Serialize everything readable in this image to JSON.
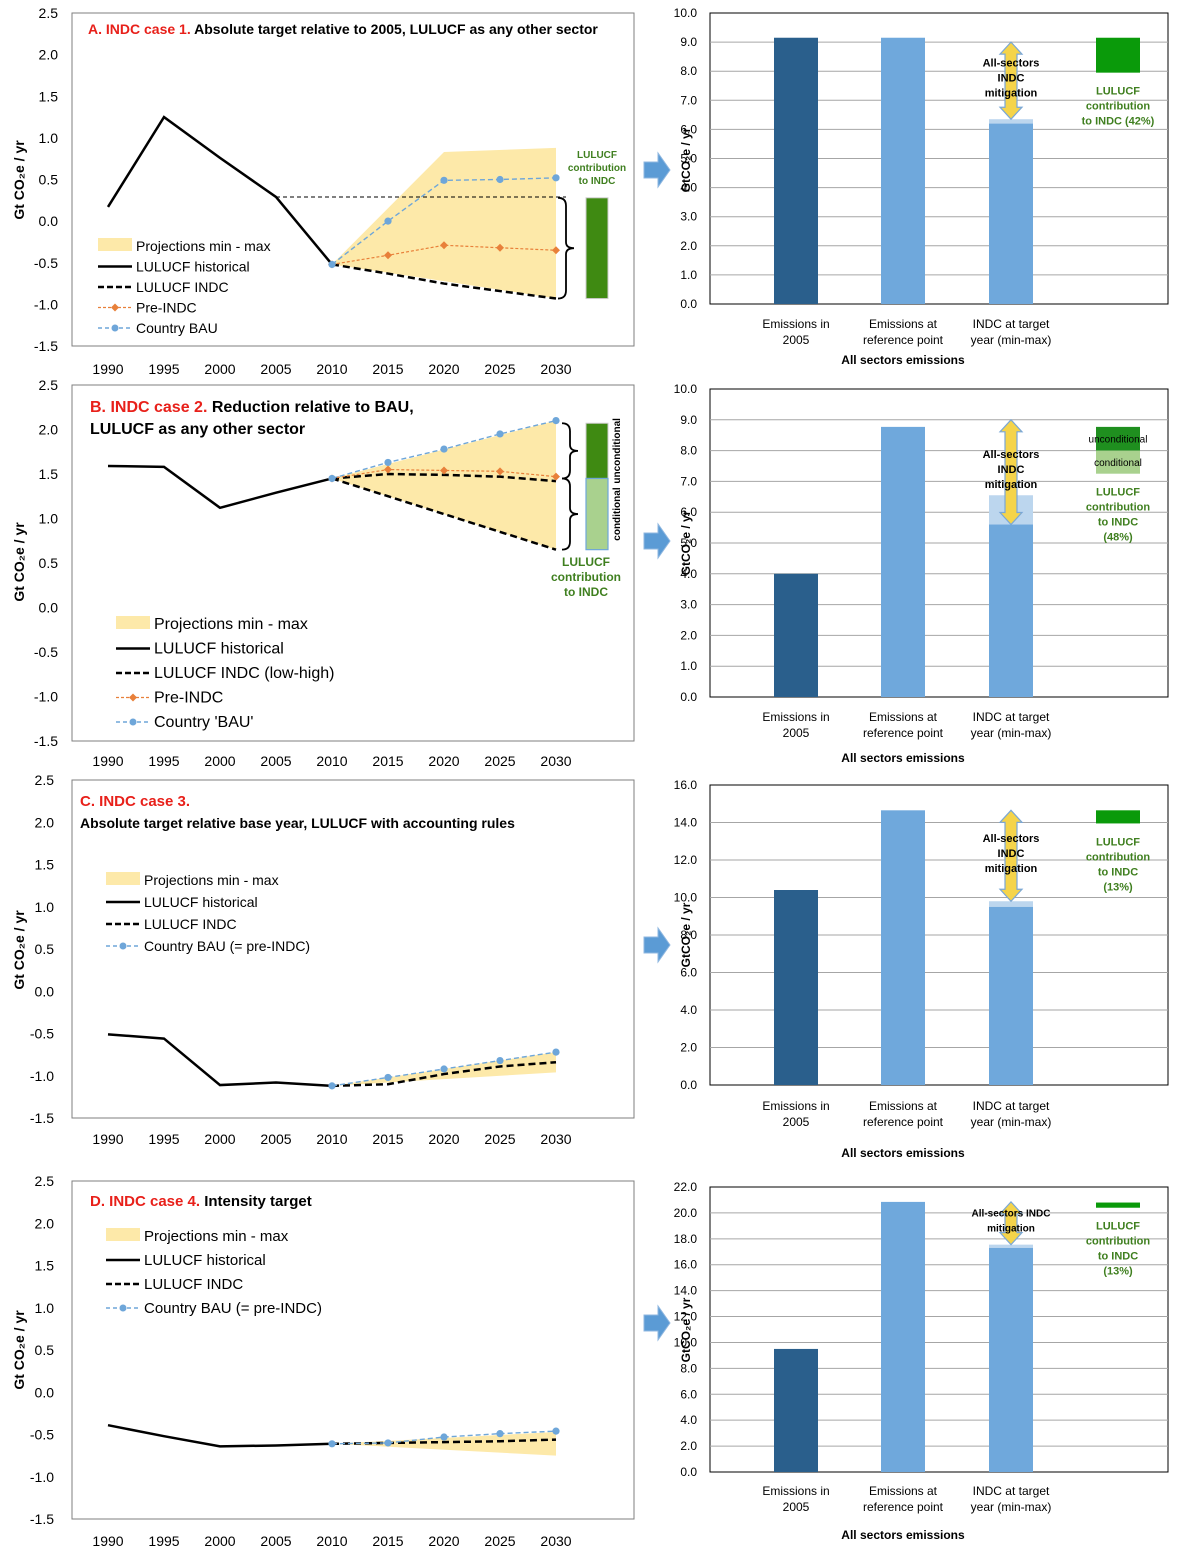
{
  "colors": {
    "band": "#fde9a9",
    "historical": "#000000",
    "indc": "#000000",
    "pre_indc": "#e8803a",
    "bau": "#6ea6d9",
    "bar_2005": "#2a5f8c",
    "bar_light": "#6fa8dc",
    "bar_faint": "#bcd6ee",
    "lulucf_green": "#0a9a0a",
    "lulucf_dark": "#3f8a12",
    "lulucf_light": "#a9d18e",
    "title_red": "#e8201a",
    "label_green": "#3f7f1f",
    "arrow_fill": "#f5d44a",
    "arrow_stroke": "#7aa7d6",
    "flow_arrow": "#5b9bd5"
  },
  "chart_data": [
    {
      "id": "A",
      "type": "line",
      "title_prefix": "A. INDC case 1.",
      "title_lines": [
        "Absolute target relative to 2005, LULUCF as any other sector"
      ],
      "ylabel": "Gt CO₂e / yr",
      "ylim": [
        -1.5,
        2.5
      ],
      "yticks": [
        "2.5",
        "2.0",
        "1.5",
        "1.0",
        "0.5",
        "0.0",
        "-0.5",
        "-1.0",
        "-1.5"
      ],
      "xticks": [
        "1990",
        "1995",
        "2000",
        "2005",
        "2010",
        "2015",
        "2020",
        "2025",
        "2030"
      ],
      "legend": [
        "Projections min - max",
        "LULUCF historical",
        "LULUCF INDC",
        "Pre-INDC",
        "Country BAU"
      ],
      "band": {
        "x": [
          2010,
          2020,
          2030
        ],
        "upper": [
          -0.52,
          0.83,
          0.88
        ],
        "lower": [
          -0.52,
          -0.72,
          -0.93
        ]
      },
      "series": [
        {
          "name": "LULUCF historical",
          "style": "historical",
          "x": [
            1990,
            1995,
            2000,
            2005,
            2010
          ],
          "y": [
            0.17,
            1.25,
            0.76,
            0.29,
            -0.52
          ]
        },
        {
          "name": "LULUCF INDC",
          "style": "indc",
          "x": [
            2010,
            2015,
            2020,
            2025,
            2030
          ],
          "y": [
            -0.52,
            -0.63,
            -0.75,
            -0.84,
            -0.93
          ]
        },
        {
          "name": "Pre-INDC",
          "style": "pre_indc",
          "x": [
            2010,
            2015,
            2020,
            2025,
            2030
          ],
          "y": [
            -0.52,
            -0.41,
            -0.29,
            -0.32,
            -0.35
          ]
        },
        {
          "name": "Country BAU",
          "style": "bau",
          "x": [
            2010,
            2015,
            2020,
            2025,
            2030
          ],
          "y": [
            -0.52,
            0.0,
            0.49,
            0.5,
            0.52
          ]
        }
      ],
      "reference_line": {
        "x": [
          2005,
          2030
        ],
        "y": 0.29
      },
      "lulucf_note": [
        "LULUCF",
        "contribution",
        "to INDC"
      ],
      "side_bar": {
        "dark": [
          0.28,
          -0.93
        ]
      }
    },
    {
      "id": "B",
      "type": "line",
      "title_prefix": "B. INDC case 2.",
      "title_lines": [
        "Reduction relative to BAU,",
        "LULUCF as any other sector"
      ],
      "ylabel": "Gt CO₂e / yr",
      "ylim": [
        -1.5,
        2.5
      ],
      "yticks": [
        "2.5",
        "2.0",
        "1.5",
        "1.0",
        "0.5",
        "0.0",
        "-0.5",
        "-1.0",
        "-1.5"
      ],
      "xticks": [
        "1990",
        "1995",
        "2000",
        "2005",
        "2010",
        "2015",
        "2020",
        "2025",
        "2030"
      ],
      "legend": [
        "Projections min - max",
        "LULUCF historical",
        "LULUCF INDC (low-high)",
        "Pre-INDC",
        "Country 'BAU'"
      ],
      "band": {
        "x": [
          2010,
          2030
        ],
        "upper": [
          1.45,
          2.1
        ],
        "lower": [
          1.45,
          0.65
        ]
      },
      "series": [
        {
          "name": "LULUCF historical",
          "style": "historical",
          "x": [
            1990,
            1995,
            2000,
            2005,
            2010
          ],
          "y": [
            1.59,
            1.58,
            1.12,
            1.29,
            1.45
          ]
        },
        {
          "name": "LULUCF INDC (low-high)",
          "style": "indc",
          "x": [
            2010,
            2015,
            2020,
            2025,
            2030
          ],
          "y": [
            1.45,
            1.5,
            1.49,
            1.47,
            1.42
          ]
        },
        {
          "name": "",
          "style": "indc",
          "x": [
            2010,
            2030
          ],
          "y": [
            1.45,
            0.65
          ]
        },
        {
          "name": "Pre-INDC",
          "style": "pre_indc",
          "x": [
            2010,
            2015,
            2020,
            2025,
            2030
          ],
          "y": [
            1.45,
            1.55,
            1.54,
            1.53,
            1.47
          ]
        },
        {
          "name": "Country 'BAU'",
          "style": "bau",
          "x": [
            2010,
            2015,
            2020,
            2025,
            2030
          ],
          "y": [
            1.45,
            1.63,
            1.78,
            1.95,
            2.1
          ]
        }
      ],
      "lulucf_note": [
        "LULUCF",
        "contribution",
        "to INDC"
      ],
      "side_labels": [
        "unconditional",
        "conditional"
      ],
      "side_bar": {
        "dark": [
          2.07,
          1.45
        ],
        "light": [
          1.45,
          0.65
        ]
      }
    },
    {
      "id": "C",
      "type": "line",
      "title_prefix": "C. INDC case 3.",
      "title_lines": [
        "Absolute target relative base year, LULUCF with accounting rules"
      ],
      "title_newline": true,
      "ylabel": "Gt CO₂e / yr",
      "ylim": [
        -1.5,
        2.5
      ],
      "yticks": [
        "2.5",
        "2.0",
        "1.5",
        "1.0",
        "0.5",
        "0.0",
        "-0.5",
        "-1.0",
        "-1.5"
      ],
      "xticks": [
        "1990",
        "1995",
        "2000",
        "2005",
        "2010",
        "2015",
        "2020",
        "2025",
        "2030"
      ],
      "legend": [
        "Projections min - max",
        "LULUCF historical",
        "LULUCF INDC",
        "Country BAU (= pre-INDC)"
      ],
      "band": {
        "x": [
          2010,
          2030
        ],
        "upper": [
          -1.12,
          -0.72
        ],
        "lower": [
          -1.12,
          -0.96
        ]
      },
      "series": [
        {
          "name": "LULUCF historical",
          "style": "historical",
          "x": [
            1990,
            1995,
            2000,
            2005,
            2010
          ],
          "y": [
            -0.51,
            -0.56,
            -1.11,
            -1.08,
            -1.12
          ]
        },
        {
          "name": "LULUCF INDC",
          "style": "indc",
          "x": [
            2010,
            2015,
            2020,
            2025,
            2030
          ],
          "y": [
            -1.12,
            -1.1,
            -0.98,
            -0.89,
            -0.84
          ]
        },
        {
          "name": "Country BAU (= pre-INDC)",
          "style": "bau",
          "x": [
            2010,
            2015,
            2020,
            2025,
            2030
          ],
          "y": [
            -1.12,
            -1.02,
            -0.92,
            -0.82,
            -0.72
          ]
        }
      ]
    },
    {
      "id": "D",
      "type": "line",
      "title_prefix": "D. INDC case 4.",
      "title_lines": [
        "Intensity target"
      ],
      "ylabel": "Gt CO₂e / yr",
      "ylim": [
        -1.5,
        2.5
      ],
      "yticks": [
        "2.5",
        "2.0",
        "1.5",
        "1.0",
        "0.5",
        "0.0",
        "-0.5",
        "-1.0",
        "-1.5"
      ],
      "xticks": [
        "1990",
        "1995",
        "2000",
        "2005",
        "2010",
        "2015",
        "2020",
        "2025",
        "2030"
      ],
      "legend": [
        "Projections min - max",
        "LULUCF historical",
        "LULUCF INDC",
        "Country BAU (= pre-INDC)"
      ],
      "band": {
        "x": [
          2010,
          2030
        ],
        "upper": [
          -0.61,
          -0.47
        ],
        "lower": [
          -0.61,
          -0.75
        ]
      },
      "series": [
        {
          "name": "LULUCF historical",
          "style": "historical",
          "x": [
            1990,
            1995,
            2000,
            2005,
            2010
          ],
          "y": [
            -0.39,
            -0.52,
            -0.64,
            -0.63,
            -0.61
          ]
        },
        {
          "name": "LULUCF INDC",
          "style": "indc",
          "x": [
            2010,
            2015,
            2020,
            2025,
            2030
          ],
          "y": [
            -0.61,
            -0.6,
            -0.59,
            -0.58,
            -0.56
          ]
        },
        {
          "name": "Country BAU (= pre-INDC)",
          "style": "bau",
          "x": [
            2010,
            2015,
            2020,
            2025,
            2030
          ],
          "y": [
            -0.61,
            -0.6,
            -0.53,
            -0.49,
            -0.46
          ]
        }
      ]
    },
    {
      "id": "A2",
      "type": "bar",
      "ylabel": "GtCO₂e / yr",
      "ylim": [
        0,
        10
      ],
      "yticks": [
        "10.0",
        "9.0",
        "8.0",
        "7.0",
        "6.0",
        "5.0",
        "4.0",
        "3.0",
        "2.0",
        "1.0",
        "0.0"
      ],
      "categories": [
        [
          "Emissions in",
          "2005"
        ],
        [
          "Emissions at",
          "reference point"
        ],
        [
          "INDC at target",
          "year (min-max)"
        ]
      ],
      "xlabel": "All sectors emissions",
      "values": [
        9.15,
        9.15,
        6.2
      ],
      "range_top": 6.35,
      "arrow": [
        9.0,
        6.35
      ],
      "arrow_label": [
        "All-sectors",
        "INDC",
        "mitigation"
      ],
      "lulucf": {
        "dark": [
          9.15,
          7.95
        ]
      },
      "lulucf_label": [
        "LULUCF",
        "contribution",
        "to INDC (42%)"
      ]
    },
    {
      "id": "B2",
      "type": "bar",
      "ylabel": "GtCO₂e / yr",
      "ylim": [
        0,
        10
      ],
      "yticks": [
        "10.0",
        "9.0",
        "8.0",
        "7.0",
        "6.0",
        "5.0",
        "4.0",
        "3.0",
        "2.0",
        "1.0",
        "0.0"
      ],
      "categories": [
        [
          "Emissions in",
          "2005"
        ],
        [
          "Emissions at",
          "reference point"
        ],
        [
          "INDC at target",
          "year (min-max)"
        ]
      ],
      "xlabel": "All sectors emissions",
      "values": [
        4.0,
        8.77,
        5.6
      ],
      "range_top": 6.55,
      "arrow": [
        9.0,
        5.6
      ],
      "arrow_label": [
        "All-sectors",
        "INDC",
        "mitigation"
      ],
      "lulucf": {
        "dark": [
          8.77,
          8.0
        ],
        "light": [
          8.0,
          7.25
        ]
      },
      "lulucf_seg_labels": [
        "unconditional",
        "conditional"
      ],
      "lulucf_label": [
        "LULUCF",
        "contribution",
        "to INDC",
        "(48%)"
      ]
    },
    {
      "id": "C2",
      "type": "bar",
      "ylabel": "GtCO₂e / yr",
      "ylim": [
        0,
        16
      ],
      "yticks": [
        "16.0",
        "14.0",
        "12.0",
        "10.0",
        "8.0",
        "6.0",
        "4.0",
        "2.0",
        "0.0"
      ],
      "categories": [
        [
          "Emissions in",
          "2005"
        ],
        [
          "Emissions at",
          "reference point"
        ],
        [
          "INDC at target",
          "year (min-max)"
        ]
      ],
      "xlabel": "All sectors emissions",
      "values": [
        10.4,
        14.65,
        9.5
      ],
      "range_top": 9.8,
      "arrow": [
        14.65,
        9.8
      ],
      "arrow_label": [
        "All-sectors",
        "INDC",
        "mitigation"
      ],
      "lulucf": {
        "dark": [
          14.65,
          13.95
        ]
      },
      "lulucf_label": [
        "LULUCF",
        "contribution",
        "to INDC",
        "(13%)"
      ]
    },
    {
      "id": "D2",
      "type": "bar",
      "ylabel": "GtCO₂e / yr",
      "ylim": [
        0,
        22
      ],
      "yticks": [
        "22.0",
        "20.0",
        "18.0",
        "16.0",
        "14.0",
        "12.0",
        "10.0",
        "8.0",
        "6.0",
        "4.0",
        "2.0",
        "0.0"
      ],
      "categories": [
        [
          "Emissions in",
          "2005"
        ],
        [
          "Emissions at",
          "reference point"
        ],
        [
          "INDC at target",
          "year (min-max)"
        ]
      ],
      "xlabel": "All sectors emissions",
      "values": [
        9.5,
        20.85,
        17.3
      ],
      "range_top": 17.55,
      "arrow": [
        20.85,
        17.55
      ],
      "arrow_label": [
        "All-sectors INDC",
        "mitigation"
      ],
      "lulucf": {
        "dark": [
          20.8,
          20.4
        ]
      },
      "lulucf_label": [
        "LULUCF",
        "contribution",
        "to INDC",
        "(13%)"
      ]
    }
  ]
}
